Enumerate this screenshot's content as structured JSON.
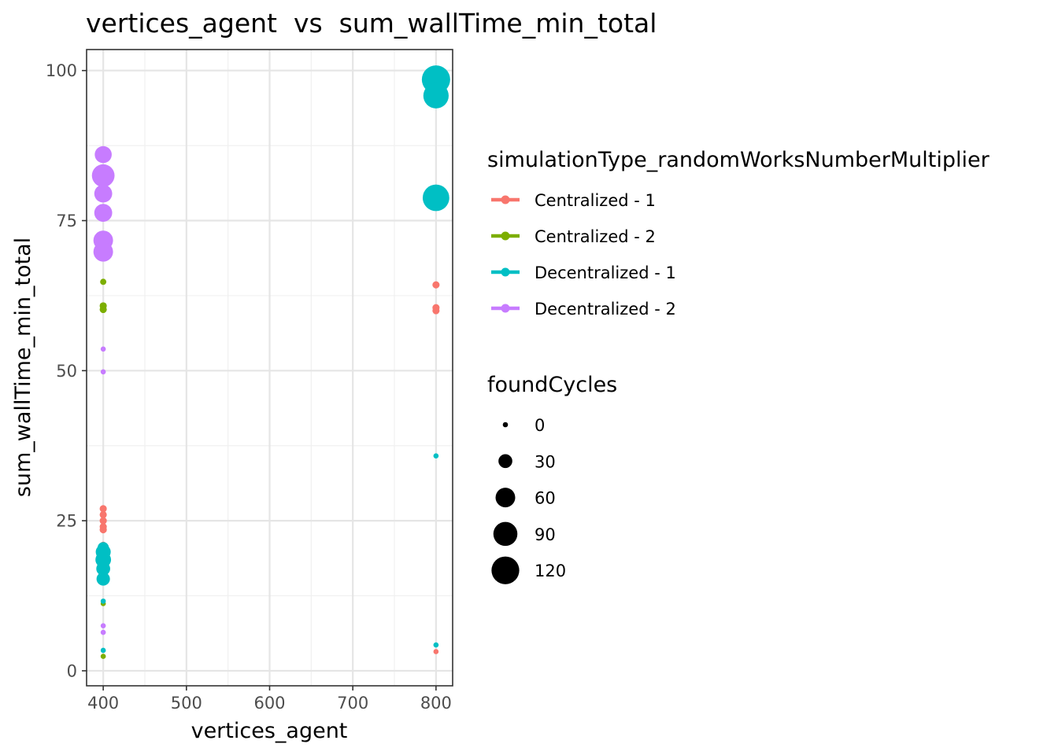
{
  "chart_data": {
    "type": "scatter",
    "title": "vertices_agent  vs  sum_wallTime_min_total",
    "xlabel": "vertices_agent",
    "ylabel": "sum_wallTime_min_total",
    "xlim": [
      380,
      820
    ],
    "ylim": [
      -2.5,
      103.5
    ],
    "xticks": [
      400,
      500,
      600,
      700,
      800
    ],
    "xtick_labels": [
      "400",
      "500",
      "600",
      "700",
      "800"
    ],
    "yticks": [
      0,
      25,
      50,
      75,
      100
    ],
    "ytick_labels": [
      "0",
      "25",
      "50",
      "75",
      "100"
    ],
    "grid": true,
    "legend_position": "right",
    "color_legend": {
      "title": "simulationType_randomWorksNumberMultiplier",
      "entries": [
        "Centralized - 1",
        "Centralized - 2",
        "Decentralized - 1",
        "Decentralized - 2"
      ]
    },
    "size_legend": {
      "title": "foundCycles",
      "entries": [
        {
          "label": "0",
          "value": 0
        },
        {
          "label": "30",
          "value": 30
        },
        {
          "label": "60",
          "value": 60
        },
        {
          "label": "90",
          "value": 90
        },
        {
          "label": "120",
          "value": 120
        }
      ]
    },
    "series": [
      {
        "name": "Centralized - 1",
        "color": "#F8766D",
        "points": [
          {
            "x": 400,
            "y": 27.0,
            "size": 8
          },
          {
            "x": 400,
            "y": 26.0,
            "size": 8
          },
          {
            "x": 400,
            "y": 25.0,
            "size": 8
          },
          {
            "x": 400,
            "y": 24.0,
            "size": 8
          },
          {
            "x": 400,
            "y": 23.5,
            "size": 8
          },
          {
            "x": 400,
            "y": 21.0,
            "size": 6
          },
          {
            "x": 800,
            "y": 64.3,
            "size": 8
          },
          {
            "x": 800,
            "y": 60.5,
            "size": 8
          },
          {
            "x": 800,
            "y": 60.0,
            "size": 8
          },
          {
            "x": 800,
            "y": 3.2,
            "size": 2
          }
        ]
      },
      {
        "name": "Centralized - 2",
        "color": "#7CAE00",
        "points": [
          {
            "x": 400,
            "y": 64.8,
            "size": 6
          },
          {
            "x": 400,
            "y": 60.8,
            "size": 8
          },
          {
            "x": 400,
            "y": 60.2,
            "size": 8
          },
          {
            "x": 400,
            "y": 11.2,
            "size": 4
          },
          {
            "x": 400,
            "y": 2.4,
            "size": 4
          }
        ]
      },
      {
        "name": "Decentralized - 1",
        "color": "#00BFC4",
        "points": [
          {
            "x": 800,
            "y": 98.5,
            "size": 125
          },
          {
            "x": 800,
            "y": 95.8,
            "size": 100
          },
          {
            "x": 800,
            "y": 78.8,
            "size": 110
          },
          {
            "x": 800,
            "y": 35.8,
            "size": 2
          },
          {
            "x": 800,
            "y": 4.3,
            "size": 2
          },
          {
            "x": 400,
            "y": 20.5,
            "size": 20
          },
          {
            "x": 400,
            "y": 19.8,
            "size": 35
          },
          {
            "x": 400,
            "y": 18.5,
            "size": 38
          },
          {
            "x": 400,
            "y": 17.0,
            "size": 30
          },
          {
            "x": 400,
            "y": 15.3,
            "size": 28
          },
          {
            "x": 400,
            "y": 11.6,
            "size": 4
          },
          {
            "x": 400,
            "y": 3.4,
            "size": 2
          }
        ]
      },
      {
        "name": "Decentralized - 2",
        "color": "#C77CFF",
        "points": [
          {
            "x": 400,
            "y": 86.0,
            "size": 45
          },
          {
            "x": 400,
            "y": 82.5,
            "size": 80
          },
          {
            "x": 400,
            "y": 79.5,
            "size": 50
          },
          {
            "x": 400,
            "y": 76.3,
            "size": 50
          },
          {
            "x": 400,
            "y": 71.7,
            "size": 60
          },
          {
            "x": 400,
            "y": 69.8,
            "size": 60
          },
          {
            "x": 400,
            "y": 53.6,
            "size": 2
          },
          {
            "x": 400,
            "y": 49.8,
            "size": 2
          },
          {
            "x": 400,
            "y": 7.5,
            "size": 2
          },
          {
            "x": 400,
            "y": 6.4,
            "size": 2
          }
        ]
      }
    ]
  }
}
